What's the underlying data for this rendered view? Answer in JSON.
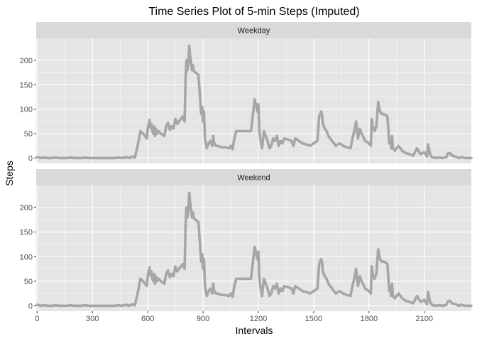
{
  "chart_data": {
    "type": "line",
    "title": "Time Series Plot of 5-min Steps (Imputed)",
    "xlabel": "Intervals",
    "ylabel": "Steps",
    "xlim": [
      -5,
      2355
    ],
    "ylim": [
      -11,
      245
    ],
    "x_ticks": [
      0,
      300,
      600,
      900,
      1200,
      1500,
      1800,
      2100
    ],
    "y_ticks": [
      0,
      50,
      100,
      150,
      200
    ],
    "grid": true,
    "line_color": "#a6a6a6",
    "panel_bg": "#e5e5e5",
    "strip_bg": "#d9d9d9",
    "grid_color": "#ffffff",
    "panels": [
      {
        "label": "Weekday",
        "x": [
          0,
          20,
          40,
          60,
          80,
          100,
          120,
          140,
          160,
          180,
          200,
          220,
          240,
          260,
          280,
          300,
          320,
          340,
          360,
          380,
          400,
          420,
          440,
          460,
          480,
          500,
          515,
          530,
          545,
          560,
          575,
          585,
          595,
          600,
          605,
          610,
          615,
          620,
          625,
          630,
          635,
          640,
          645,
          650,
          660,
          670,
          680,
          690,
          700,
          710,
          720,
          730,
          740,
          750,
          760,
          770,
          780,
          790,
          800,
          805,
          810,
          815,
          820,
          825,
          830,
          835,
          840,
          845,
          850,
          860,
          875,
          890,
          895,
          900,
          905,
          910,
          920,
          930,
          940,
          950,
          955,
          960,
          970,
          980,
          1000,
          1020,
          1040,
          1050,
          1060,
          1070,
          1080,
          1090,
          1100,
          1110,
          1120,
          1140,
          1160,
          1180,
          1195,
          1200,
          1205,
          1210,
          1220,
          1230,
          1240,
          1250,
          1260,
          1270,
          1280,
          1290,
          1300,
          1310,
          1320,
          1330,
          1340,
          1360,
          1380,
          1390,
          1400,
          1420,
          1440,
          1460,
          1480,
          1500,
          1520,
          1530,
          1540,
          1545,
          1550,
          1560,
          1570,
          1580,
          1590,
          1600,
          1610,
          1620,
          1640,
          1660,
          1680,
          1700,
          1710,
          1720,
          1730,
          1740,
          1750,
          1760,
          1780,
          1800,
          1810,
          1815,
          1820,
          1830,
          1840,
          1845,
          1850,
          1860,
          1870,
          1880,
          1890,
          1900,
          1910,
          1915,
          1920,
          1925,
          1930,
          1940,
          1960,
          1980,
          2000,
          2020,
          2040,
          2060,
          2080,
          2100,
          2110,
          2115,
          2120,
          2130,
          2140,
          2160,
          2180,
          2200,
          2220,
          2230,
          2240,
          2250,
          2270,
          2290,
          2300,
          2320,
          2340,
          2355
        ],
        "y": [
          2,
          0,
          1,
          0,
          0,
          1,
          0,
          0,
          0,
          1,
          0,
          0,
          0,
          1,
          0,
          0,
          0,
          0,
          0,
          0,
          0,
          0,
          1,
          0,
          2,
          0,
          3,
          1,
          25,
          55,
          50,
          45,
          40,
          60,
          70,
          78,
          62,
          70,
          55,
          50,
          65,
          45,
          60,
          50,
          55,
          50,
          48,
          45,
          65,
          72,
          58,
          65,
          60,
          80,
          70,
          75,
          80,
          85,
          75,
          160,
          200,
          180,
          195,
          230,
          210,
          195,
          180,
          190,
          178,
          175,
          170,
          90,
          105,
          75,
          95,
          40,
          20,
          30,
          35,
          25,
          45,
          30,
          25,
          25,
          22,
          22,
          20,
          25,
          18,
          40,
          55,
          55,
          55,
          55,
          55,
          55,
          55,
          120,
          95,
          110,
          60,
          40,
          20,
          55,
          45,
          35,
          20,
          25,
          40,
          35,
          45,
          25,
          35,
          30,
          40,
          38,
          35,
          25,
          40,
          35,
          30,
          28,
          25,
          30,
          35,
          85,
          95,
          90,
          70,
          60,
          55,
          45,
          40,
          35,
          30,
          25,
          30,
          25,
          22,
          20,
          40,
          55,
          75,
          40,
          60,
          50,
          35,
          30,
          25,
          80,
          65,
          55,
          65,
          90,
          115,
          95,
          90,
          90,
          88,
          85,
          30,
          40,
          20,
          45,
          20,
          15,
          25,
          15,
          10,
          8,
          5,
          20,
          8,
          12,
          5,
          3,
          28,
          10,
          2,
          0,
          1,
          0,
          2,
          10,
          10,
          5,
          3,
          0,
          2,
          0,
          0,
          0
        ]
      },
      {
        "label": "Weekend",
        "x": [
          0,
          20,
          40,
          60,
          80,
          100,
          120,
          140,
          160,
          180,
          200,
          220,
          240,
          260,
          280,
          300,
          320,
          340,
          360,
          380,
          400,
          420,
          440,
          460,
          480,
          500,
          515,
          530,
          545,
          560,
          575,
          585,
          595,
          600,
          605,
          610,
          615,
          620,
          625,
          630,
          635,
          640,
          645,
          650,
          660,
          670,
          680,
          690,
          700,
          710,
          720,
          730,
          740,
          750,
          760,
          770,
          780,
          790,
          800,
          805,
          810,
          815,
          820,
          825,
          830,
          835,
          840,
          845,
          850,
          860,
          875,
          890,
          895,
          900,
          905,
          910,
          920,
          930,
          940,
          950,
          955,
          960,
          970,
          980,
          1000,
          1020,
          1040,
          1050,
          1060,
          1070,
          1080,
          1090,
          1100,
          1110,
          1120,
          1140,
          1160,
          1180,
          1195,
          1200,
          1205,
          1210,
          1220,
          1230,
          1240,
          1250,
          1260,
          1270,
          1280,
          1290,
          1300,
          1310,
          1320,
          1330,
          1340,
          1360,
          1380,
          1390,
          1400,
          1420,
          1440,
          1460,
          1480,
          1500,
          1520,
          1530,
          1540,
          1545,
          1550,
          1560,
          1570,
          1580,
          1590,
          1600,
          1610,
          1620,
          1640,
          1660,
          1680,
          1700,
          1710,
          1720,
          1730,
          1740,
          1750,
          1760,
          1780,
          1800,
          1810,
          1815,
          1820,
          1830,
          1840,
          1845,
          1850,
          1860,
          1870,
          1880,
          1890,
          1900,
          1910,
          1915,
          1920,
          1925,
          1930,
          1940,
          1960,
          1980,
          2000,
          2020,
          2040,
          2060,
          2080,
          2100,
          2110,
          2115,
          2120,
          2130,
          2140,
          2160,
          2180,
          2200,
          2220,
          2230,
          2240,
          2250,
          2270,
          2290,
          2300,
          2320,
          2340,
          2355
        ],
        "y": [
          2,
          0,
          1,
          0,
          0,
          1,
          0,
          0,
          0,
          1,
          0,
          0,
          0,
          1,
          0,
          0,
          0,
          0,
          0,
          0,
          0,
          0,
          1,
          0,
          2,
          0,
          3,
          1,
          25,
          55,
          50,
          45,
          40,
          60,
          70,
          78,
          62,
          70,
          55,
          50,
          65,
          45,
          60,
          50,
          55,
          50,
          48,
          45,
          65,
          72,
          58,
          65,
          60,
          80,
          70,
          75,
          80,
          85,
          75,
          160,
          200,
          180,
          195,
          230,
          210,
          195,
          180,
          190,
          178,
          175,
          170,
          90,
          105,
          75,
          95,
          40,
          20,
          30,
          35,
          25,
          45,
          30,
          25,
          25,
          22,
          22,
          20,
          25,
          18,
          40,
          55,
          55,
          55,
          55,
          55,
          55,
          55,
          120,
          95,
          110,
          60,
          40,
          20,
          55,
          45,
          35,
          20,
          25,
          40,
          35,
          45,
          25,
          35,
          30,
          40,
          38,
          35,
          25,
          40,
          35,
          30,
          28,
          25,
          30,
          35,
          85,
          95,
          90,
          70,
          60,
          55,
          45,
          40,
          35,
          30,
          25,
          30,
          25,
          22,
          20,
          40,
          55,
          75,
          40,
          60,
          50,
          35,
          30,
          25,
          80,
          65,
          55,
          65,
          90,
          115,
          95,
          90,
          90,
          88,
          85,
          30,
          40,
          20,
          45,
          20,
          15,
          25,
          15,
          10,
          8,
          5,
          20,
          8,
          12,
          5,
          3,
          28,
          10,
          2,
          0,
          1,
          0,
          2,
          10,
          10,
          5,
          3,
          0,
          2,
          0,
          0,
          0
        ]
      }
    ]
  }
}
